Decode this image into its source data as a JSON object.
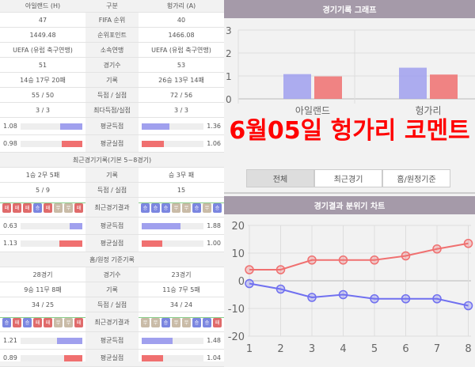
{
  "table": {
    "header": {
      "home": "아일랜드 (H)",
      "label": "구분",
      "away": "헝가리 (A)"
    },
    "rows": [
      {
        "home": "47",
        "label": "FIFA 순위",
        "away": "40"
      },
      {
        "home": "1449.48",
        "label": "순위포인트",
        "away": "1466.08"
      },
      {
        "home": "UEFA (유럽 축구연맹)",
        "label": "소속연맹",
        "away": "UEFA (유럽 축구연맹)"
      },
      {
        "home": "51",
        "label": "경기수",
        "away": "53"
      },
      {
        "home": "14승 17무 20패",
        "label": "기록",
        "away": "26승 13무 14패"
      },
      {
        "home": "55 / 50",
        "label": "득점 / 실점",
        "away": "72 / 56"
      },
      {
        "home": "3 / 3",
        "label": "최다득점/실점",
        "away": "3 / 3"
      }
    ],
    "avg": [
      {
        "label": "평균득점",
        "home": "1.08",
        "away": "1.36"
      },
      {
        "label": "평균실점",
        "home": "0.98",
        "away": "1.06"
      }
    ]
  },
  "recent": {
    "title": "최근경기기록(기본 5~8경기)",
    "rows": [
      {
        "home": "1승 2무 5패",
        "label": "기록",
        "away": "승 3무 패"
      },
      {
        "home": "5 / 9",
        "label": "득점 / 실점",
        "away": "15"
      }
    ],
    "results_label": "최근경기결과",
    "home_results": [
      "패",
      "패",
      "패",
      "승",
      "패",
      "무",
      "무",
      "패"
    ],
    "away_results": [
      "승",
      "승",
      "승",
      "무",
      "무",
      "승",
      "무",
      "승"
    ],
    "avg": [
      {
        "label": "평균득점",
        "home": "0.63",
        "away": "1.88"
      },
      {
        "label": "평균실점",
        "home": "1.13",
        "away": "1.00"
      }
    ]
  },
  "homeaway": {
    "title": "홈/원정 기준기록",
    "rows": [
      {
        "home": "28경기",
        "label": "경기수",
        "away": "23경기"
      },
      {
        "home": "9승 11무 8패",
        "label": "기록",
        "away": "11승 7무 5패"
      },
      {
        "home": "34 / 25",
        "label": "득점 / 실점",
        "away": "34 / 24"
      }
    ],
    "results_label": "최근경기결과",
    "home_results": [
      "승",
      "패",
      "승",
      "패",
      "패",
      "무",
      "무",
      "패"
    ],
    "away_results": [
      "무",
      "무",
      "승",
      "무",
      "무",
      "승",
      "승",
      "패"
    ],
    "avg": [
      {
        "label": "평균득점",
        "home": "1.21",
        "away": "1.48"
      },
      {
        "label": "평균실점",
        "home": "0.89",
        "away": "1.04"
      }
    ]
  },
  "colors": {
    "win": "#7b86e0",
    "loss": "#e06b6b",
    "draw": "#c9bba7",
    "scored": "#a0a0ee",
    "conceded": "#f07070"
  },
  "right": {
    "graph_title": "경기기록 그래프",
    "tabs": [
      "전체",
      "최근경기",
      "홈/원정기준"
    ],
    "mood_title": "경기결과 분위기 차트"
  },
  "overlay": "6월05일 헝가리 코멘트",
  "chart_data": [
    {
      "type": "bar",
      "categories": [
        "아일랜드",
        "헝가리"
      ],
      "series": [
        {
          "values": [
            1.08,
            1.36
          ]
        },
        {
          "values": [
            0.98,
            1.06
          ]
        }
      ],
      "ylim": [
        0,
        3
      ],
      "yticks": [
        0,
        1,
        2,
        3
      ],
      "grid": true
    },
    {
      "type": "line",
      "x": [
        1,
        2,
        3,
        4,
        5,
        6,
        7,
        8
      ],
      "series": [
        {
          "values": [
            4,
            4,
            7.5,
            7.5,
            7.5,
            9,
            11.5,
            13.5
          ],
          "color": "#f07070"
        },
        {
          "values": [
            -1,
            -3,
            -6,
            -5,
            -6.5,
            -6.5,
            -6.5,
            -9
          ],
          "color": "#7070f0"
        }
      ],
      "ylim": [
        -20,
        20
      ],
      "yticks": [
        -20,
        -10,
        0,
        10,
        20
      ],
      "grid": true
    }
  ]
}
